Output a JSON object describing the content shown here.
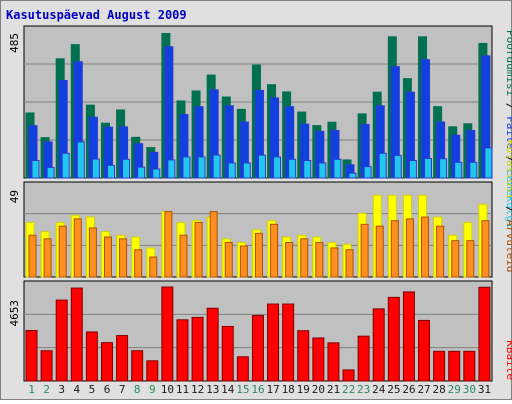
{
  "title": "Kasutuspäevad August 2009",
  "colors": {
    "background": "#e0e0e0",
    "plot_bg": "#c0c0c0",
    "title": "#0000c0",
    "weekday_label": "#1a1a1a",
    "weekend_label": "#2a8a5a",
    "pages_outer": "#007050",
    "pages_inner": "#1040e0",
    "files_outer": "#2a3ad0",
    "files_inner": "#20c8f0",
    "hits_outer": "#d0d010",
    "hits_inner": "#ffff00",
    "visits_outer": "#b05000",
    "visits_inner": "#ff9020",
    "kbytes_outer": "#800000",
    "kbytes_inner": "#ff0000"
  },
  "chart_data": [
    {
      "type": "bar",
      "panel": "top",
      "ymax_label": "485",
      "ylim": [
        0,
        485
      ],
      "series_labels": [
        "Pöördumisi",
        "Faile",
        "Lehekülgi"
      ],
      "categories": [
        "1",
        "2",
        "3",
        "4",
        "5",
        "6",
        "7",
        "8",
        "9",
        "10",
        "11",
        "12",
        "13",
        "14",
        "15",
        "16",
        "17",
        "18",
        "19",
        "20",
        "21",
        "22",
        "23",
        "24",
        "25",
        "26",
        "27",
        "28",
        "29",
        "30",
        "31"
      ],
      "weekend_days": [
        "1",
        "2",
        "8",
        "9",
        "15",
        "16",
        "22",
        "23",
        "29",
        "30"
      ],
      "series": [
        {
          "name": "Pöördumisi",
          "values": [
            216,
            134,
            396,
            443,
            242,
            182,
            226,
            135,
            101,
            480,
            256,
            289,
            342,
            269,
            228,
            375,
            310,
            286,
            219,
            174,
            185,
            60,
            213,
            285,
            469,
            330,
            469,
            237,
            170,
            180,
            447
          ]
        },
        {
          "name": "Faile",
          "values": [
            174,
            120,
            324,
            386,
            202,
            169,
            170,
            114,
            85,
            436,
            211,
            237,
            293,
            240,
            186,
            291,
            266,
            237,
            179,
            155,
            158,
            44,
            178,
            240,
            370,
            285,
            393,
            186,
            142,
            158,
            406
          ]
        },
        {
          "name": "Lehekülgi",
          "values": [
            58,
            35,
            82,
            120,
            63,
            42,
            62,
            36,
            30,
            60,
            70,
            70,
            76,
            50,
            50,
            76,
            70,
            62,
            58,
            50,
            62,
            16,
            38,
            82,
            75,
            58,
            65,
            64,
            52,
            52,
            100
          ]
        }
      ]
    },
    {
      "type": "bar",
      "panel": "middle",
      "ymax_label": "49",
      "ylim": [
        0,
        49
      ],
      "series_labels": [
        "Külastusi",
        "Arvuteid"
      ],
      "categories": [
        "1",
        "2",
        "3",
        "4",
        "5",
        "6",
        "7",
        "8",
        "9",
        "10",
        "11",
        "12",
        "13",
        "14",
        "15",
        "16",
        "17",
        "18",
        "19",
        "20",
        "21",
        "22",
        "23",
        "24",
        "25",
        "26",
        "27",
        "28",
        "29",
        "30",
        "31"
      ],
      "series": [
        {
          "name": "Külastusi",
          "values": [
            30,
            25,
            30,
            34,
            33,
            25,
            23,
            22,
            16,
            36,
            30,
            31,
            33,
            21,
            19,
            26,
            31,
            22,
            23,
            22,
            19,
            18,
            35,
            45,
            45,
            45,
            45,
            33,
            23,
            30,
            40
          ]
        },
        {
          "name": "Arvuteid",
          "values": [
            23,
            21,
            28,
            32,
            27,
            22,
            21,
            15,
            11,
            36,
            23,
            30,
            36,
            19,
            17,
            24,
            29,
            19,
            21,
            19,
            16,
            15,
            29,
            28,
            31,
            32,
            33,
            28,
            20,
            20,
            31
          ]
        }
      ]
    },
    {
      "type": "bar",
      "panel": "bottom",
      "ymax_label": "4653",
      "ylim": [
        0,
        4653
      ],
      "series_labels": [
        "KBaite"
      ],
      "categories": [
        "1",
        "2",
        "3",
        "4",
        "5",
        "6",
        "7",
        "8",
        "9",
        "10",
        "11",
        "12",
        "13",
        "14",
        "15",
        "16",
        "17",
        "18",
        "19",
        "20",
        "21",
        "22",
        "23",
        "24",
        "25",
        "26",
        "27",
        "28",
        "29",
        "30",
        "31"
      ],
      "series": [
        {
          "name": "KBaite",
          "values": [
            2500,
            1500,
            4005,
            4600,
            2430,
            1900,
            2250,
            1500,
            1000,
            4653,
            3030,
            3150,
            3600,
            2700,
            1200,
            3240,
            3810,
            3810,
            2490,
            2130,
            1890,
            550,
            2220,
            3570,
            4140,
            4410,
            3000,
            1470,
            1470,
            1470,
            4640
          ]
        }
      ]
    }
  ]
}
